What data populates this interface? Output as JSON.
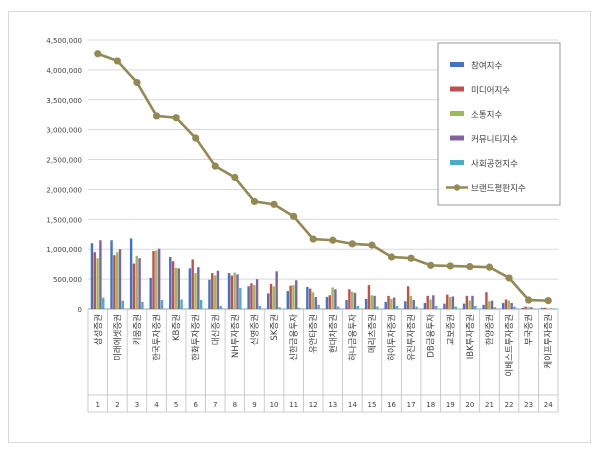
{
  "chart_data": {
    "type": "bar",
    "categories": [
      "삼성증권",
      "미래에셋증권",
      "키움증권",
      "한국투자증권",
      "KB증권",
      "한화투자증권",
      "대신증권",
      "NH투자증권",
      "신영증권",
      "SK증권",
      "신한금융투자",
      "유안타증권",
      "현대차증권",
      "하나금융투자",
      "메리츠증권",
      "하이투자증권",
      "유진투자증권",
      "DB금융투자",
      "교보증권",
      "IBK투자증권",
      "한양증권",
      "이베스트투자증권",
      "부국증권",
      "케이프투자증권"
    ],
    "numbers": [
      "1",
      "2",
      "3",
      "4",
      "5",
      "6",
      "7",
      "8",
      "9",
      "10",
      "11",
      "12",
      "13",
      "14",
      "15",
      "16",
      "17",
      "18",
      "19",
      "20",
      "21",
      "22",
      "23",
      "24"
    ],
    "ylim": [
      0,
      4500000
    ],
    "yticks": [
      "0",
      "500,000",
      "1,000,000",
      "1,500,000",
      "2,000,000",
      "2,500,000",
      "3,000,000",
      "3,500,000",
      "4,000,000",
      "4,500,000"
    ],
    "ytick_values": [
      0,
      500000,
      1000000,
      1500000,
      2000000,
      2500000,
      3000000,
      3500000,
      4000000,
      4500000
    ],
    "series": [
      {
        "name": "참여지수",
        "type": "bar",
        "color": "#4472c4",
        "values": [
          1100000,
          1150000,
          1180000,
          520000,
          870000,
          680000,
          490000,
          600000,
          380000,
          260000,
          300000,
          370000,
          200000,
          150000,
          170000,
          120000,
          130000,
          100000,
          90000,
          90000,
          70000,
          100000,
          20000,
          20000
        ]
      },
      {
        "name": "미디어지수",
        "type": "bar",
        "color": "#c0504d",
        "values": [
          950000,
          900000,
          760000,
          970000,
          800000,
          830000,
          600000,
          560000,
          430000,
          420000,
          390000,
          340000,
          230000,
          330000,
          400000,
          220000,
          380000,
          220000,
          240000,
          220000,
          280000,
          160000,
          40000,
          20000
        ]
      },
      {
        "name": "소통지수",
        "type": "bar",
        "color": "#9bbb59",
        "values": [
          850000,
          950000,
          890000,
          980000,
          690000,
          600000,
          560000,
          610000,
          400000,
          380000,
          400000,
          280000,
          360000,
          290000,
          230000,
          170000,
          220000,
          160000,
          200000,
          140000,
          130000,
          140000,
          30000,
          10000
        ]
      },
      {
        "name": "커뮤니티지수",
        "type": "bar",
        "color": "#8064a2",
        "values": [
          1150000,
          1000000,
          850000,
          1010000,
          680000,
          700000,
          640000,
          580000,
          500000,
          630000,
          480000,
          200000,
          330000,
          270000,
          220000,
          190000,
          150000,
          230000,
          210000,
          220000,
          140000,
          100000,
          30000,
          10000
        ]
      },
      {
        "name": "사회공헌지수",
        "type": "bar",
        "color": "#4bacc6",
        "values": [
          190000,
          140000,
          120000,
          150000,
          160000,
          150000,
          50000,
          350000,
          50000,
          30000,
          20000,
          70000,
          40000,
          50000,
          40000,
          50000,
          40000,
          50000,
          40000,
          50000,
          30000,
          40000,
          10000,
          10000
        ]
      },
      {
        "name": "브랜드평판지수",
        "type": "line",
        "color": "#938953",
        "values": [
          4270000,
          4150000,
          3790000,
          3230000,
          3200000,
          2860000,
          2390000,
          2200000,
          1800000,
          1750000,
          1550000,
          1170000,
          1150000,
          1090000,
          1070000,
          870000,
          850000,
          730000,
          720000,
          710000,
          700000,
          520000,
          150000,
          140000
        ]
      }
    ]
  }
}
